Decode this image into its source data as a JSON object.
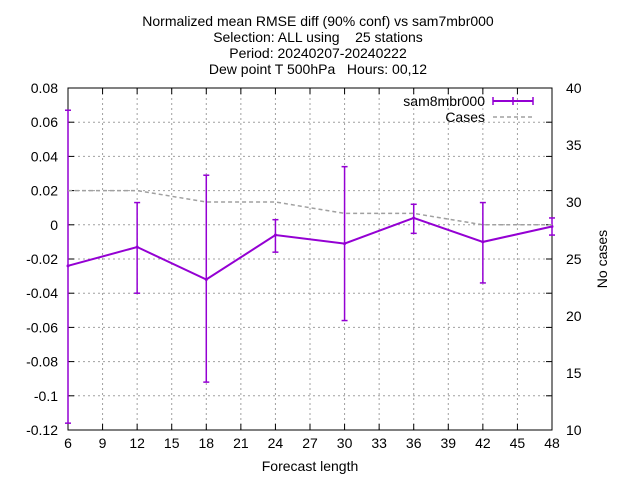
{
  "chart_data": {
    "type": "line",
    "title_lines": [
      "Normalized mean RMSE diff (90% conf) vs sam7mbr000",
      "Selection: ALL using    25 stations",
      "Period: 20240207-20240222",
      "Dew point T 500hPa   Hours: 00,12"
    ],
    "xlabel": "Forecast length",
    "ylabel_right": "No cases",
    "x_ticks": [
      6,
      9,
      12,
      15,
      18,
      21,
      24,
      27,
      30,
      33,
      36,
      39,
      42,
      45,
      48
    ],
    "y_ticks": [
      "0.08",
      "0.06",
      "0.04",
      "0.02",
      "0",
      "-0.02",
      "-0.04",
      "-0.06",
      "-0.08",
      "-0.1",
      "-0.12"
    ],
    "y2_ticks": [
      "40",
      "35",
      "30",
      "25",
      "20",
      "15",
      "10"
    ],
    "xlim": [
      6,
      48
    ],
    "ylim": [
      -0.12,
      0.08
    ],
    "y2lim": [
      10,
      40
    ],
    "grid": true,
    "legend_position": "top-right",
    "series": [
      {
        "name": "sam8mbr000",
        "color": "#9400d3",
        "axis": "y",
        "errorbars": true,
        "x": [
          6,
          12,
          18,
          24,
          30,
          36,
          42,
          48
        ],
        "y": [
          -0.024,
          -0.013,
          -0.032,
          -0.006,
          -0.011,
          0.004,
          -0.01,
          -0.001
        ],
        "y_low": [
          -0.116,
          -0.04,
          -0.092,
          -0.016,
          -0.056,
          -0.005,
          -0.034,
          -0.006
        ],
        "y_high": [
          0.067,
          0.013,
          0.029,
          0.003,
          0.034,
          0.012,
          0.013,
          0.004
        ]
      },
      {
        "name": "Cases",
        "color": "#a0a0a0",
        "axis": "y2",
        "dashed": true,
        "x": [
          6,
          12,
          18,
          24,
          30,
          36,
          42,
          48
        ],
        "y": [
          31,
          31,
          30,
          30,
          29,
          29,
          28,
          28
        ]
      }
    ]
  }
}
